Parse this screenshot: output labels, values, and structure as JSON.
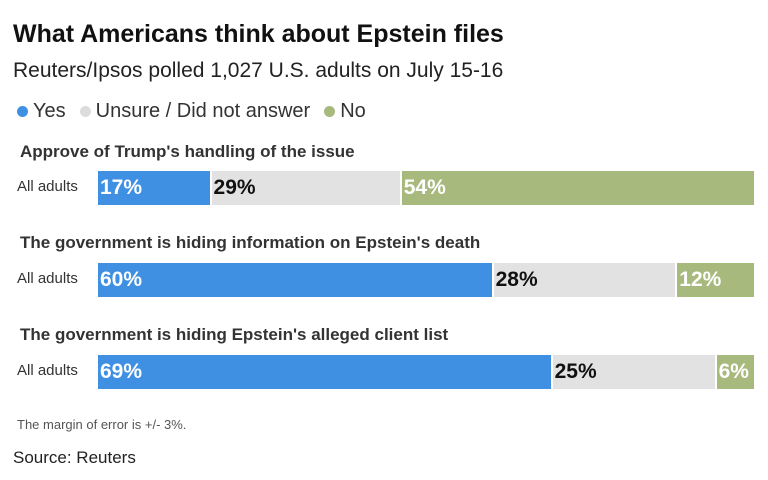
{
  "chart_data": {
    "type": "bar",
    "orientation": "horizontal-stacked",
    "title": "What Americans think about Epstein files",
    "subtitle": "Reuters/Ipsos polled 1,027 U.S. adults on July 15-16",
    "legend": [
      {
        "name": "Yes",
        "color": "#3f8fe3"
      },
      {
        "name": "Unsure / Did not answer",
        "color": "#dcdcdc"
      },
      {
        "name": "No",
        "color": "#a8b97e"
      }
    ],
    "questions": [
      {
        "question": "Approve of Trump's handling of the issue",
        "group": "All adults",
        "yes": 17,
        "unsure": 29,
        "no": 54
      },
      {
        "question": "The government is hiding information on Epstein's death",
        "group": "All adults",
        "yes": 60,
        "unsure": 28,
        "no": 12
      },
      {
        "question": "The government is hiding Epstein's alleged client list",
        "group": "All adults",
        "yes": 69,
        "unsure": 25,
        "no": 6
      }
    ],
    "note": "The margin of error is +/- 3%.",
    "source": "Source: Reuters"
  }
}
